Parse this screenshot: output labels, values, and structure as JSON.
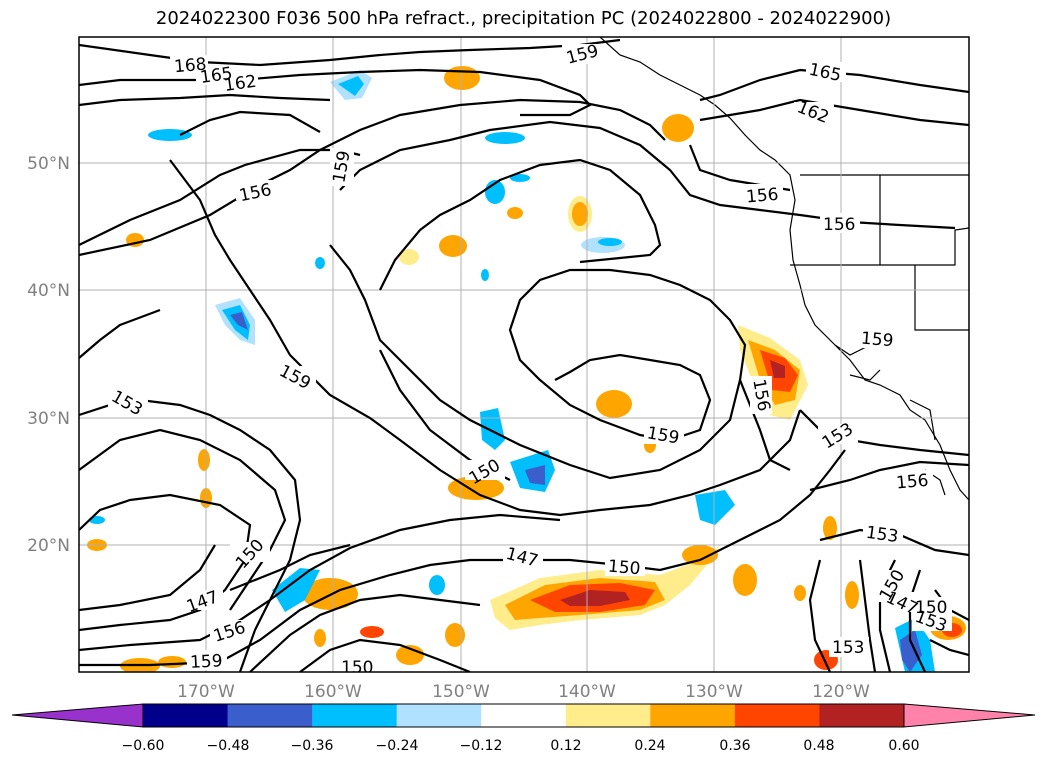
{
  "title": "2024022300 F036 500 hPa refract., precipitation PC (2024022800 - 2024022900)",
  "map": {
    "lat_labels": [
      "50°N",
      "40°N",
      "30°N",
      "20°N"
    ],
    "lon_labels": [
      "170°W",
      "160°W",
      "150°W",
      "140°W",
      "130°W",
      "120°W"
    ],
    "grid": true
  },
  "contour_labels": [
    {
      "text": "168"
    },
    {
      "text": "165"
    },
    {
      "text": "162"
    },
    {
      "text": "159"
    },
    {
      "text": "165"
    },
    {
      "text": "162"
    },
    {
      "text": "156"
    },
    {
      "text": "159"
    },
    {
      "text": "156"
    },
    {
      "text": "156"
    },
    {
      "text": "159"
    },
    {
      "text": "153"
    },
    {
      "text": "159"
    },
    {
      "text": "156"
    },
    {
      "text": "159"
    },
    {
      "text": "153"
    },
    {
      "text": "150"
    },
    {
      "text": "156"
    },
    {
      "text": "150"
    },
    {
      "text": "147"
    },
    {
      "text": "147"
    },
    {
      "text": "150"
    },
    {
      "text": "156"
    },
    {
      "text": "159"
    },
    {
      "text": "150"
    },
    {
      "text": "153"
    },
    {
      "text": "150"
    },
    {
      "text": "147"
    },
    {
      "text": "150"
    },
    {
      "text": "153"
    },
    {
      "text": "153"
    }
  ],
  "colorbar": {
    "ticks": [
      "−0.60",
      "−0.48",
      "−0.36",
      "−0.24",
      "−0.12",
      "0.12",
      "0.24",
      "0.36",
      "0.48",
      "0.60"
    ],
    "colors": [
      "#9932cc",
      "#00008b",
      "#3a5fcd",
      "#00bfff",
      "#b0e2ff",
      "#ffffff",
      "#ffec8b",
      "#ffa500",
      "#ff4500",
      "#b22222",
      "#ff82ab"
    ]
  }
}
